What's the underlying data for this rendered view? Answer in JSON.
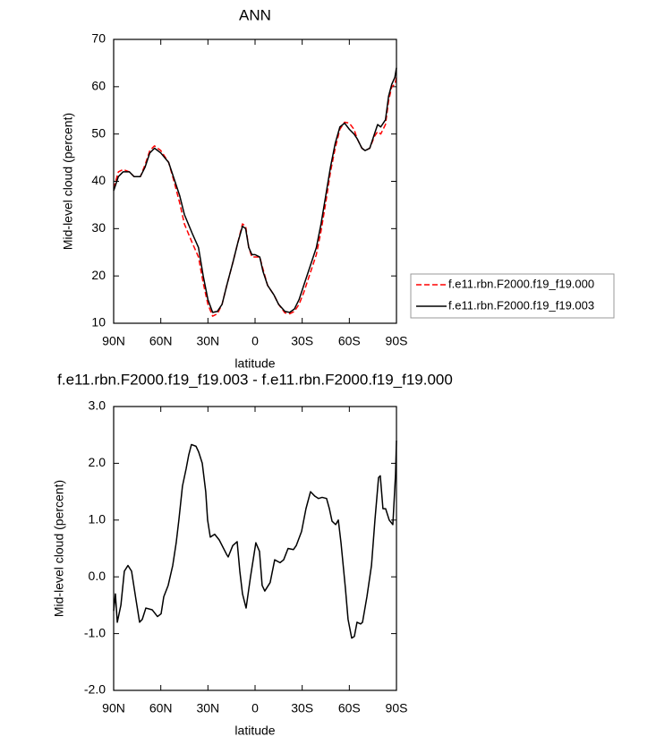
{
  "chart_data": [
    {
      "type": "line",
      "title": "ANN",
      "x_label": "latitude",
      "y_label": "Mid-level cloud (percent)",
      "x": [
        90,
        87,
        84,
        80,
        77,
        73,
        70,
        67,
        64,
        60,
        55,
        52,
        48,
        45,
        40,
        36,
        33,
        30,
        27,
        24,
        21,
        18,
        14,
        11,
        8,
        6,
        4,
        2,
        0,
        -3,
        -5,
        -8,
        -12,
        -15,
        -19,
        -22,
        -25,
        -28,
        -31,
        -35,
        -39,
        -42,
        -45,
        -48,
        -51,
        -54,
        -57,
        -60,
        -63,
        -65,
        -68,
        -70,
        -73,
        -76,
        -78,
        -80,
        -83,
        -85,
        -87,
        -89,
        -90
      ],
      "series": [
        {
          "name": "f.e11.rbn.F2000.f19_f19.000",
          "color": "#ff0000",
          "line_style": "dashed",
          "values": [
            38.5,
            42,
            42.5,
            42,
            41,
            41,
            43.5,
            46.5,
            47.5,
            46.5,
            44,
            40.5,
            35.5,
            31,
            27,
            24,
            18.5,
            14,
            11.5,
            12,
            14,
            18,
            23,
            27,
            31,
            30.5,
            26,
            24,
            24,
            24,
            21.5,
            18,
            16,
            14,
            12.2,
            12,
            12.5,
            14,
            16.5,
            20.5,
            24.5,
            29.5,
            35.5,
            42,
            47,
            51,
            52.5,
            52.3,
            51,
            49,
            47,
            46.5,
            47,
            49.5,
            50.5,
            50,
            52,
            57,
            60,
            60.5,
            62
          ]
        },
        {
          "name": "f.e11.rbn.F2000.f19_f19.003",
          "color": "#000000",
          "line_style": "solid",
          "values": [
            38,
            41,
            42,
            42,
            41,
            41,
            43,
            46,
            47,
            46,
            44,
            41,
            37,
            33,
            29,
            26,
            20,
            15,
            12.3,
            12.5,
            14,
            18,
            23,
            27,
            30.5,
            30,
            26,
            24.5,
            24.5,
            24,
            21,
            18,
            16,
            14,
            12.5,
            12.3,
            13,
            15,
            18,
            22,
            26,
            31,
            37,
            43,
            48,
            51.5,
            52.3,
            51,
            50,
            49,
            47,
            46.5,
            47,
            50,
            52,
            51.5,
            53,
            58,
            60.5,
            62,
            64
          ]
        }
      ],
      "xlim": [
        90,
        -90
      ],
      "xticks": [
        {
          "value": 90,
          "label": "90N"
        },
        {
          "value": 60,
          "label": "60N"
        },
        {
          "value": 30,
          "label": "30N"
        },
        0,
        {
          "value": -30,
          "label": "30S"
        },
        {
          "value": -60,
          "label": "60S"
        },
        {
          "value": -90,
          "label": "90S"
        }
      ],
      "ylim": [
        10,
        70
      ],
      "yticks": [
        10,
        20,
        30,
        40,
        50,
        60,
        70
      ],
      "legend": "right"
    },
    {
      "type": "line",
      "title": "f.e11.rbn.F2000.f19_f19.003 - f.e11.rbn.F2000.f19_f19.000",
      "x_label": "latitude",
      "y_label": "Mid-level cloud (percent)",
      "x": [
        90,
        88.9,
        87.7,
        85.4,
        83.2,
        80.9,
        78.6,
        75.8,
        73.5,
        71.8,
        69.5,
        65.5,
        62.1,
        59.8,
        58.1,
        55.3,
        52.4,
        50.2,
        48.5,
        46.2,
        43.9,
        42.2,
        40.5,
        37.6,
        35.9,
        33.6,
        31.4,
        30.2,
        28.5,
        25.7,
        22.8,
        18.2,
        17.1,
        14.2,
        11.4,
        9.7,
        8.0,
        5.7,
        2.9,
        -0.5,
        -2.8,
        -4.5,
        -6.2,
        -9.6,
        -12.5,
        -15.9,
        -18.2,
        -21.0,
        -24.4,
        -26.2,
        -29.6,
        -32.4,
        -35.3,
        -38.1,
        -40.4,
        -42.7,
        -45.5,
        -47.3,
        -49.0,
        -51.3,
        -53.0,
        -54.7,
        -57.5,
        -59.2,
        -61.5,
        -63.2,
        -64.9,
        -67.2,
        -68.4,
        -71.2,
        -74.1,
        -76.3,
        -78.6,
        -79.7,
        -81.4,
        -83.1,
        -85.4,
        -87.7,
        -89.4,
        -90
      ],
      "values": [
        -0.6,
        -0.3,
        -0.8,
        -0.5,
        0.1,
        0.2,
        0.1,
        -0.4,
        -0.8,
        -0.75,
        -0.55,
        -0.58,
        -0.7,
        -0.65,
        -0.35,
        -0.15,
        0.2,
        0.6,
        1.0,
        1.6,
        1.9,
        2.15,
        2.33,
        2.3,
        2.2,
        2.0,
        1.5,
        1.0,
        0.7,
        0.75,
        0.65,
        0.4,
        0.35,
        0.55,
        0.62,
        0.1,
        -0.3,
        -0.55,
        0.0,
        0.6,
        0.45,
        -0.15,
        -0.25,
        -0.1,
        0.3,
        0.25,
        0.3,
        0.5,
        0.48,
        0.55,
        0.8,
        1.2,
        1.5,
        1.42,
        1.38,
        1.4,
        1.38,
        1.2,
        0.98,
        0.92,
        1.0,
        0.6,
        -0.2,
        -0.75,
        -1.08,
        -1.05,
        -0.8,
        -0.83,
        -0.8,
        -0.35,
        0.2,
        1.0,
        1.75,
        1.78,
        1.2,
        1.2,
        1.0,
        0.92,
        1.8,
        2.4
      ],
      "color": "#000000",
      "xlim": [
        90,
        -90
      ],
      "xticks": [
        {
          "value": 90,
          "label": "90N"
        },
        {
          "value": 60,
          "label": "60N"
        },
        {
          "value": 30,
          "label": "30N"
        },
        0,
        {
          "value": -30,
          "label": "30S"
        },
        {
          "value": -60,
          "label": "60S"
        },
        {
          "value": -90,
          "label": "90S"
        }
      ],
      "ylim": [
        -2,
        3
      ],
      "yticks": [
        {
          "value": -2,
          "label": "-2.0"
        },
        {
          "value": -1,
          "label": "-1.0"
        },
        {
          "value": 0,
          "label": "0.0"
        },
        {
          "value": 1,
          "label": "1.0"
        },
        {
          "value": 2,
          "label": "2.0"
        },
        {
          "value": 3,
          "label": "3.0"
        }
      ]
    }
  ]
}
